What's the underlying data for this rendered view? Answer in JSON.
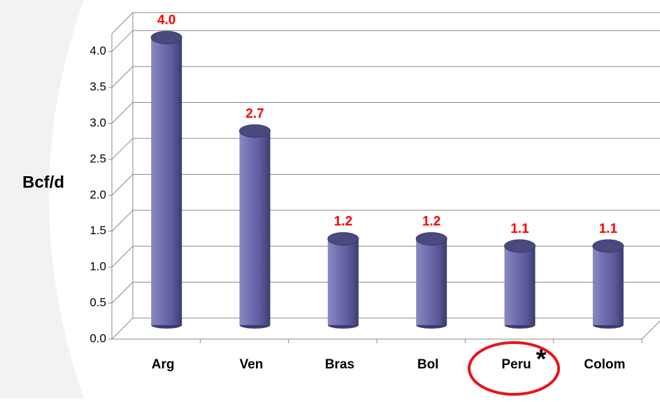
{
  "chart_data": {
    "type": "bar3d",
    "ylabel": "Bcf/d",
    "categories": [
      "Arg",
      "Ven",
      "Bras",
      "Bol",
      "Peru",
      "Colom"
    ],
    "values": [
      4.0,
      2.7,
      1.2,
      1.2,
      1.1,
      1.1
    ],
    "value_labels": [
      "4.0",
      "2.7",
      "1.2",
      "1.2",
      "1.1",
      "1.1"
    ],
    "color": "#5a5a9a",
    "label_color": "#ff0000",
    "ylim": [
      0,
      4.25
    ],
    "yticks": [
      {
        "value": 0,
        "label": "0.0"
      },
      {
        "value": 0.5,
        "label": "0.5"
      },
      {
        "value": 1,
        "label": "1.0"
      },
      {
        "value": 1.5,
        "label": "1.5"
      },
      {
        "value": 2,
        "label": "2.0"
      },
      {
        "value": 2.5,
        "label": "2.5"
      },
      {
        "value": 3,
        "label": "3.0"
      },
      {
        "value": 3.5,
        "label": "3.5"
      },
      {
        "value": 4,
        "label": "4.0"
      }
    ],
    "grid": true,
    "annotation": "*"
  }
}
